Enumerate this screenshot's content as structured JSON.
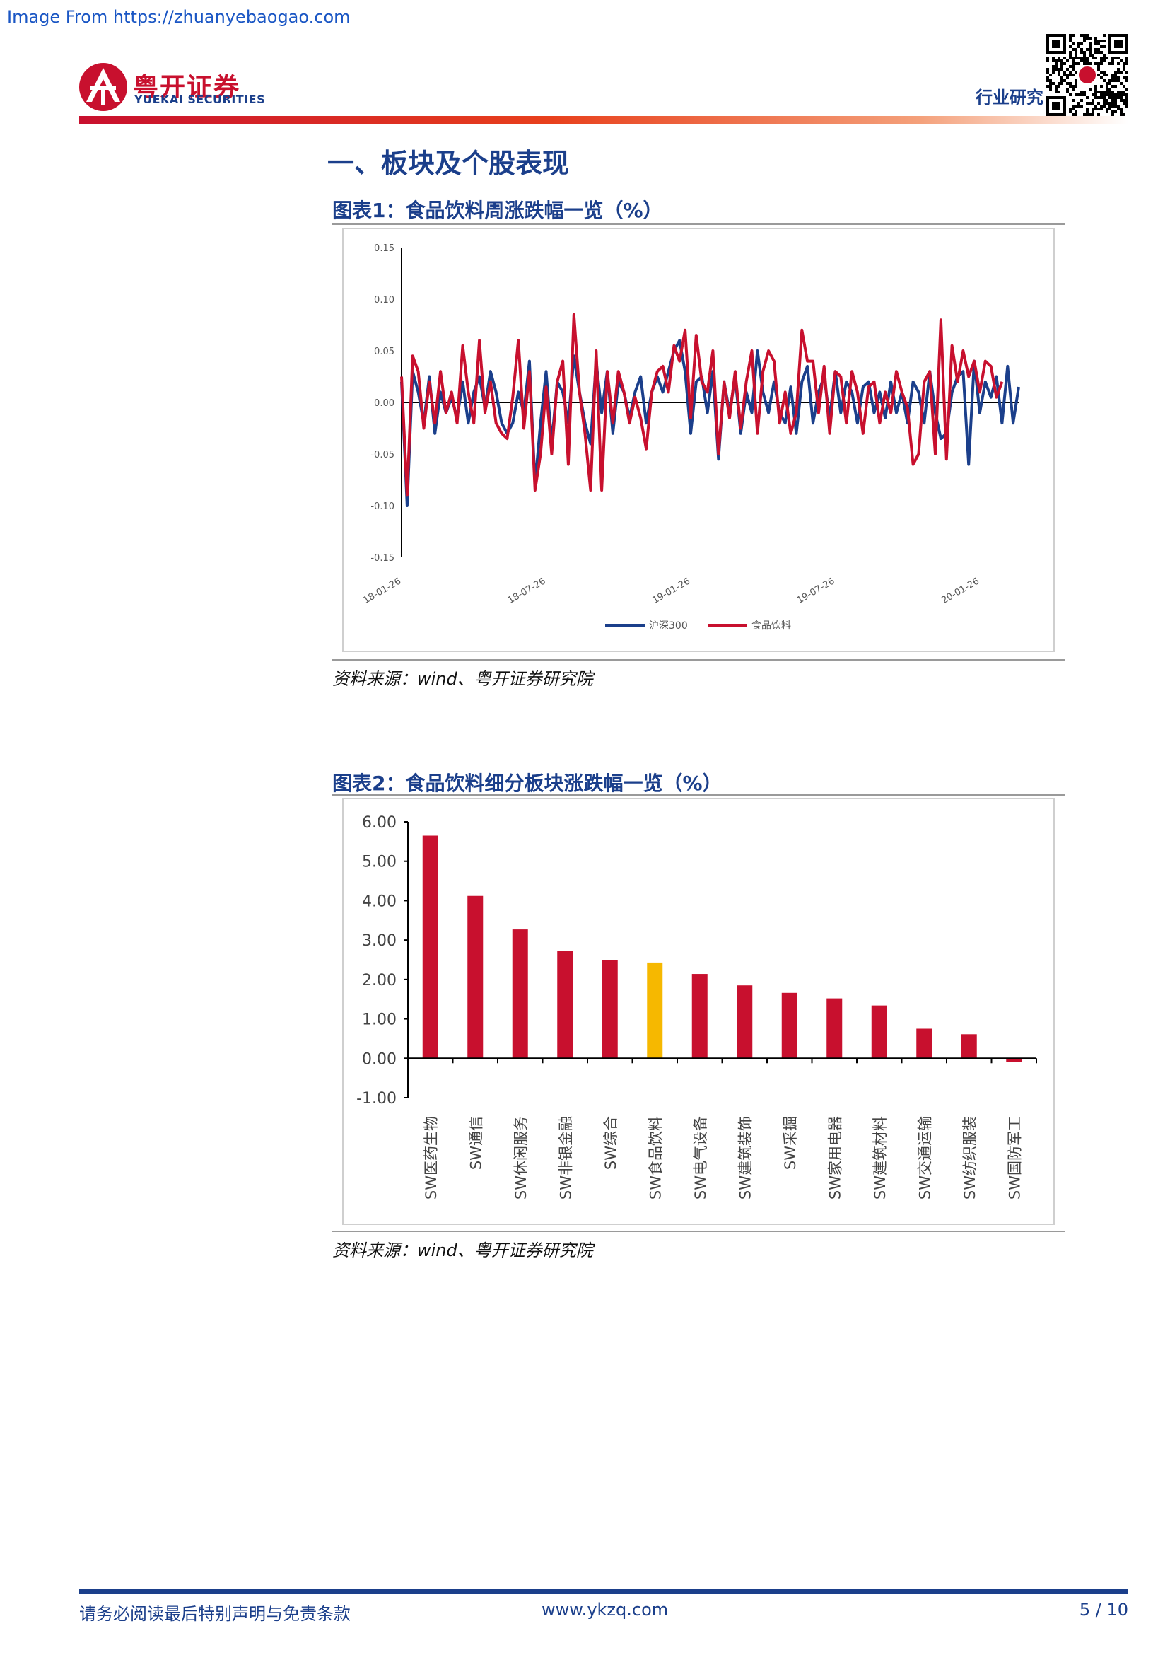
{
  "watermark": "Image From https://zhuanyebaogao.com",
  "header": {
    "logo_name": "粤开证券",
    "logo_en": "YUEKAI SECURITIES",
    "section_label": "行业研究",
    "qr_icon": "qr-code-icon"
  },
  "section_title": "一、板块及个股表现",
  "figure1": {
    "title": "图表1：食品饮料周涨跌幅一览（%）",
    "source": "资料来源：wind、粤开证券研究院",
    "chart_data": {
      "type": "line",
      "x_tick_labels": [
        "18-01-26",
        "18-07-26",
        "19-01-26",
        "19-07-26",
        "20-01-26"
      ],
      "x_tick_positions": [
        0,
        26,
        52,
        78,
        104
      ],
      "y_tick_labels": [
        "0.15",
        "0.10",
        "0.05",
        "0.00",
        "-0.05",
        "-0.10",
        "-0.15"
      ],
      "ylim": [
        -0.15,
        0.15
      ],
      "legend_position": "bottom",
      "grid": false,
      "series": [
        {
          "name": "沪深300",
          "color": "#1b3f8b",
          "values": [
            0.02,
            -0.1,
            0.03,
            0.01,
            -0.02,
            0.025,
            -0.03,
            0.01,
            -0.01,
            0.005,
            -0.015,
            0.02,
            -0.02,
            0.01,
            0.025,
            -0.005,
            0.03,
            0.01,
            -0.02,
            -0.03,
            -0.02,
            0.01,
            -0.01,
            0.04,
            -0.08,
            -0.02,
            0.03,
            -0.04,
            0.02,
            0.01,
            -0.02,
            0.045,
            0.01,
            -0.02,
            -0.04,
            0.04,
            -0.01,
            0.03,
            -0.03,
            0.02,
            0.01,
            -0.015,
            0.01,
            0.025,
            -0.02,
            0.01,
            0.025,
            0.01,
            0.03,
            0.05,
            0.06,
            0.03,
            -0.03,
            0.02,
            0.025,
            -0.01,
            0.03,
            -0.055,
            0.02,
            -0.01,
            0.025,
            -0.03,
            0.01,
            -0.01,
            0.05,
            0.01,
            -0.01,
            0.02,
            -0.01,
            -0.02,
            0.015,
            -0.03,
            0.02,
            0.035,
            -0.02,
            0.01,
            0.025,
            -0.015,
            0.03,
            -0.01,
            0.02,
            0.01,
            -0.02,
            0.015,
            0.02,
            -0.01,
            0.01,
            -0.015,
            0.02,
            -0.01,
            0.01,
            -0.02,
            0.02,
            0.01,
            -0.02,
            0.03,
            -0.01,
            -0.035,
            -0.03,
            0.01,
            0.025,
            0.03,
            -0.06,
            0.04,
            -0.01,
            0.02,
            0.005,
            0.025,
            -0.02,
            0.035,
            -0.02,
            0.015
          ]
        },
        {
          "name": "食品饮料",
          "color": "#c8102e",
          "values": [
            0.025,
            -0.09,
            0.045,
            0.03,
            -0.025,
            0.02,
            -0.02,
            0.03,
            -0.01,
            0.01,
            -0.02,
            0.055,
            0.01,
            -0.02,
            0.06,
            -0.01,
            0.02,
            -0.02,
            -0.03,
            -0.035,
            0.005,
            0.06,
            -0.025,
            0.03,
            -0.085,
            -0.05,
            0.015,
            -0.05,
            0.02,
            0.04,
            -0.06,
            0.085,
            0.01,
            -0.03,
            -0.085,
            0.05,
            -0.085,
            0.03,
            -0.02,
            0.03,
            0.01,
            -0.02,
            0.005,
            -0.015,
            -0.045,
            0.01,
            0.03,
            0.035,
            0.01,
            0.055,
            0.04,
            0.07,
            -0.015,
            0.065,
            0.02,
            0.01,
            0.05,
            -0.05,
            0.02,
            -0.015,
            0.03,
            -0.025,
            0.02,
            0.05,
            -0.03,
            0.03,
            0.05,
            0.04,
            -0.02,
            0.01,
            -0.03,
            -0.01,
            0.07,
            0.04,
            0.04,
            -0.01,
            0.035,
            -0.03,
            0.03,
            0.025,
            -0.02,
            0.03,
            0.01,
            -0.03,
            0.015,
            0.02,
            -0.02,
            0.01,
            -0.01,
            0.03,
            0.01,
            -0.005,
            -0.06,
            -0.05,
            0.02,
            0.03,
            -0.05,
            0.08,
            -0.055,
            0.055,
            0.02,
            0.05,
            0.025,
            0.04,
            0.01,
            0.04,
            0.035,
            0.005,
            0.02
          ]
        }
      ]
    }
  },
  "figure2": {
    "title": "图表2：食品饮料细分板块涨跌幅一览（%）",
    "source": "资料来源：wind、粤开证券研究院",
    "chart_data": {
      "type": "bar",
      "categories": [
        "SW医药生物",
        "SW通信",
        "SW休闲服务",
        "SW非银金融",
        "SW综合",
        "SW食品饮料",
        "SW电气设备",
        "SW建筑装饰",
        "SW采掘",
        "SW家用电器",
        "SW建筑材料",
        "SW交通运输",
        "SW纺织服装",
        "SW国防军工"
      ],
      "values": [
        5.65,
        4.12,
        3.27,
        2.73,
        2.5,
        2.43,
        2.14,
        1.85,
        1.66,
        1.52,
        1.34,
        0.75,
        0.61,
        -0.1
      ],
      "y_tick_labels": [
        "6.00",
        "5.00",
        "4.00",
        "3.00",
        "2.00",
        "1.00",
        "0.00",
        "-1.00"
      ],
      "ylim": [
        -1,
        6
      ],
      "bar_color": "#c8102e",
      "highlight_color": "#f6b800",
      "highlight_index": 5,
      "grid": false
    }
  },
  "footer": {
    "disclaimer": "请务必阅读最后特别声明与免责条款",
    "website": "www.ykzq.com",
    "page": "5 / 10"
  }
}
